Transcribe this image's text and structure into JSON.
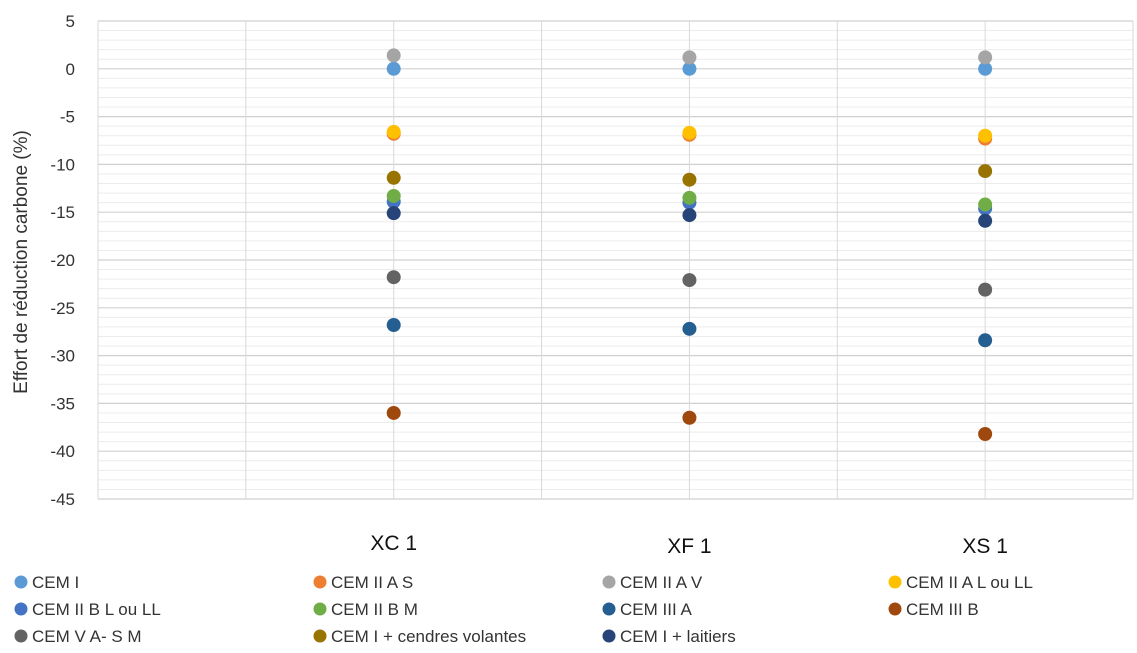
{
  "chart_data": {
    "type": "scatter",
    "categories": [
      "XC 1",
      "XF 1",
      "XS 1"
    ],
    "ylabel": "Effort de réduction carbone (%)",
    "ylim": [
      -45,
      5
    ],
    "yticks": [
      5,
      0,
      -5,
      -10,
      -15,
      -20,
      -25,
      -30,
      -35,
      -40,
      -45
    ],
    "grid": true,
    "legend_position": "bottom",
    "series": [
      {
        "name": "CEM I",
        "color": "#5B9BD5",
        "values": [
          0,
          0,
          0
        ]
      },
      {
        "name": "CEM II A S",
        "color": "#ED7D31",
        "values": [
          -6.8,
          -6.9,
          -7.3
        ]
      },
      {
        "name": "CEM II A V",
        "color": "#A5A5A5",
        "values": [
          1.4,
          1.2,
          1.2
        ]
      },
      {
        "name": "CEM II A L ou LL",
        "color": "#FFC000",
        "values": [
          -6.6,
          -6.7,
          -7.0
        ]
      },
      {
        "name": "CEM II B L ou LL",
        "color": "#4472C4",
        "values": [
          -13.9,
          -14.0,
          -14.6
        ]
      },
      {
        "name": "CEM II B M",
        "color": "#70AD47",
        "values": [
          -13.3,
          -13.5,
          -14.2
        ]
      },
      {
        "name": "CEM III A",
        "color": "#255E91",
        "values": [
          -26.8,
          -27.2,
          -28.4
        ]
      },
      {
        "name": "CEM III B",
        "color": "#9E480E",
        "values": [
          -36.0,
          -36.5,
          -38.2
        ]
      },
      {
        "name": "CEM V A- S M",
        "color": "#636363",
        "values": [
          -21.8,
          -22.1,
          -23.1
        ]
      },
      {
        "name": "CEM I + cendres volantes",
        "color": "#997300",
        "values": [
          -11.4,
          -11.6,
          -10.7
        ]
      },
      {
        "name": "CEM I + laitiers",
        "color": "#264478",
        "values": [
          -15.1,
          -15.3,
          -15.9
        ]
      }
    ]
  }
}
